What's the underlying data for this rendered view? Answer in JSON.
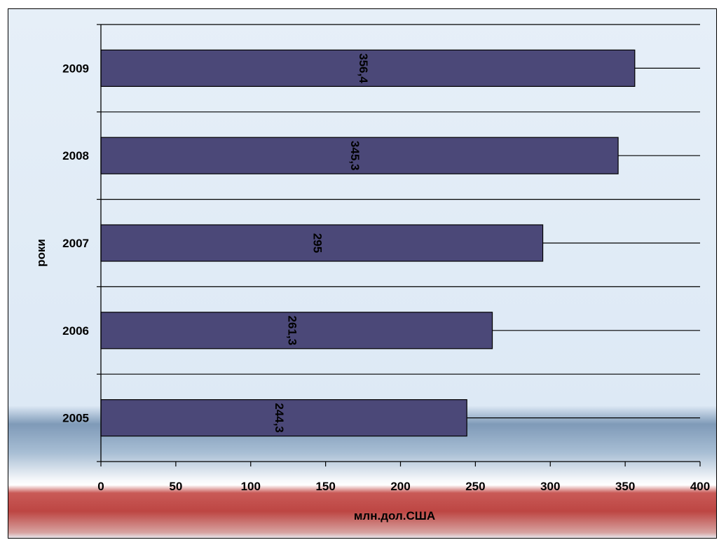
{
  "chart_data": {
    "type": "bar",
    "orientation": "horizontal",
    "title": "",
    "categories": [
      "2005",
      "2006",
      "2007",
      "2008",
      "2009"
    ],
    "values": [
      244.3,
      261.3,
      295,
      345.3,
      356.4
    ],
    "value_labels": [
      "244,3",
      "261,3",
      "295",
      "345,3",
      "356,4"
    ],
    "xlabel": "млн.дол.США",
    "ylabel": "роки",
    "xlim": [
      0,
      400
    ],
    "xticks": [
      "0",
      "50",
      "100",
      "150",
      "200",
      "250",
      "300",
      "350",
      "400"
    ],
    "grid": "horizontal",
    "legend": "none",
    "colors": {
      "bar": "#4b4878",
      "bar_border": "#000000",
      "grid": "#000000"
    }
  }
}
